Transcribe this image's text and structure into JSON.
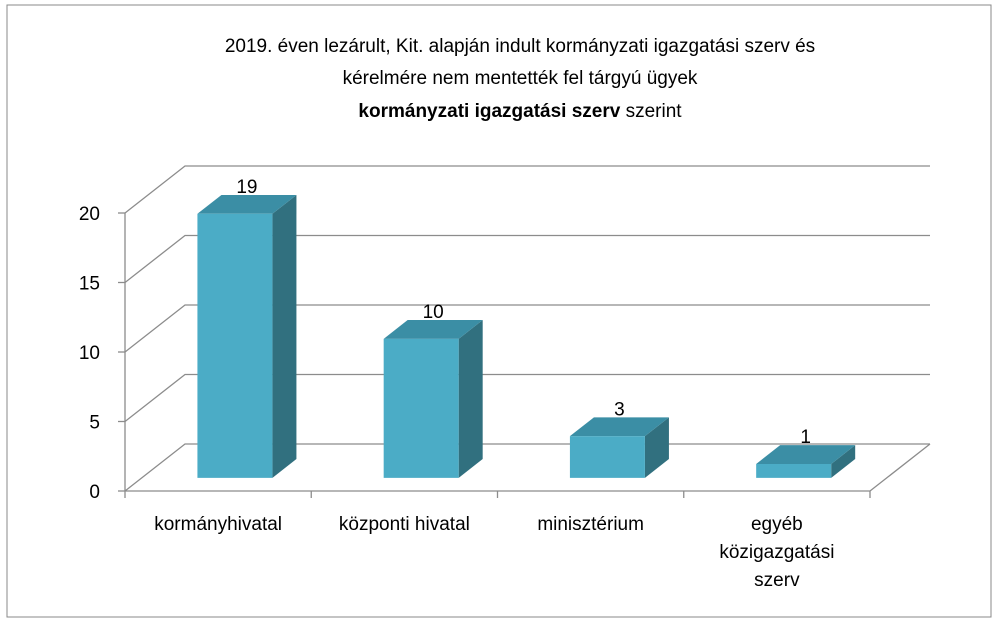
{
  "chart_data": {
    "type": "bar3d",
    "title": [
      "2019. éven lezárult, Kit. alapján indult kormányzati igazgatási szerv  és",
      "kérelmére nem mentették fel tárgyú ügyek"
    ],
    "title_bold": "kormányzati igazgatási szerv",
    "title_suffix": "szerint",
    "categories": [
      "kormányhivatal",
      "központi hivatal",
      "minisztérium",
      "egyéb közigazgatási szerv"
    ],
    "values": [
      19,
      10,
      3,
      1
    ],
    "color": "#4bacc6",
    "ylim": [
      0,
      20
    ],
    "yticks": [
      0,
      5,
      10,
      15,
      20
    ],
    "grid": true
  }
}
